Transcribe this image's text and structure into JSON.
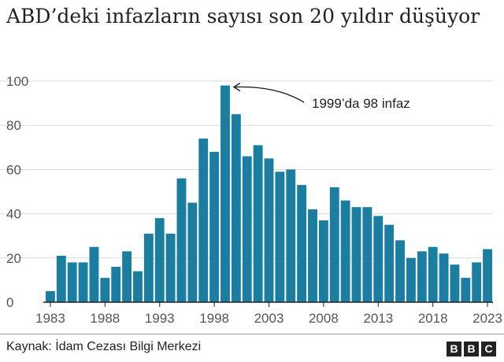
{
  "title": "ABD’deki infazların sayısı son 20 yıldır düşüyor",
  "source": "Kaynak: İdam Cezası Bilgi Merkezi",
  "logo": [
    "B",
    "B",
    "C"
  ],
  "colors": {
    "bar": "#1b7ea1",
    "grid": "#d9d9d9",
    "axis": "#222222",
    "text": "#222222"
  },
  "chart_data": {
    "type": "bar",
    "title": "ABD’deki infazların sayısı son 20 yıldır düşüyor",
    "xlabel": "",
    "ylabel": "",
    "x": [
      1983,
      1984,
      1985,
      1986,
      1987,
      1988,
      1989,
      1990,
      1991,
      1992,
      1993,
      1994,
      1995,
      1996,
      1997,
      1998,
      1999,
      2000,
      2001,
      2002,
      2003,
      2004,
      2005,
      2006,
      2007,
      2008,
      2009,
      2010,
      2011,
      2012,
      2013,
      2014,
      2015,
      2016,
      2017,
      2018,
      2019,
      2020,
      2021,
      2022,
      2023
    ],
    "values": [
      5,
      21,
      18,
      18,
      25,
      11,
      16,
      23,
      14,
      31,
      38,
      31,
      56,
      45,
      74,
      68,
      98,
      85,
      66,
      71,
      65,
      59,
      60,
      53,
      42,
      37,
      52,
      46,
      43,
      43,
      39,
      35,
      28,
      20,
      23,
      25,
      22,
      17,
      11,
      18,
      24
    ],
    "ylim": [
      0,
      100
    ],
    "y_ticks": [
      0,
      20,
      40,
      60,
      80,
      100
    ],
    "x_tick_labels": [
      "1983",
      "1988",
      "1993",
      "1998",
      "2003",
      "2008",
      "2013",
      "2018",
      "2023"
    ],
    "grid": true,
    "annotation": {
      "text": "1999’da 98 infaz",
      "x": 1999,
      "y": 98
    }
  }
}
